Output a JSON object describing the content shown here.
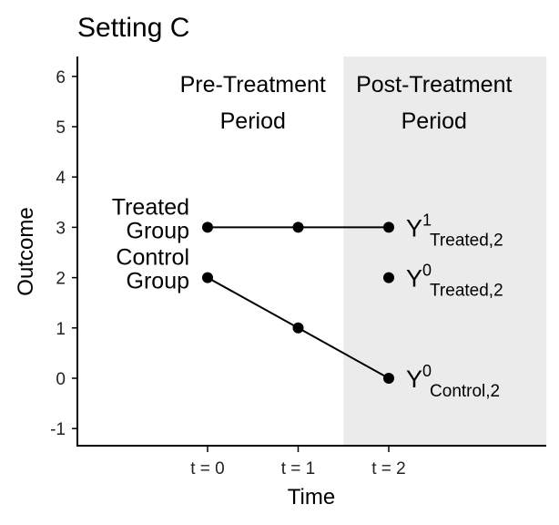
{
  "chart_data": {
    "type": "line",
    "title": "Setting C",
    "xlabel": "Time",
    "ylabel": "Outcome",
    "xlim": [
      -1.44,
      3.74
    ],
    "ylim": [
      -1.34,
      6.4
    ],
    "x_ticks": [
      0,
      1,
      2
    ],
    "x_tick_labels": [
      "t = 0",
      "t = 1",
      "t = 2"
    ],
    "y_ticks": [
      -1,
      0,
      1,
      2,
      3,
      4,
      5,
      6
    ],
    "y_tick_labels": [
      "-1",
      "0",
      "1",
      "2",
      "3",
      "4",
      "5",
      "6"
    ],
    "grid": false,
    "shaded_region": {
      "x_from": 1.5,
      "x_to": 3.74,
      "color": "#ebebeb"
    },
    "series": [
      {
        "name": "Treated Group",
        "x": [
          0,
          1,
          2
        ],
        "y": [
          3,
          3,
          3
        ]
      },
      {
        "name": "Control Group",
        "x": [
          0,
          1,
          2
        ],
        "y": [
          2,
          1,
          0
        ]
      }
    ],
    "extra_points": [
      {
        "x": 2,
        "y": 2
      }
    ],
    "period_labels": [
      {
        "x": 0.5,
        "lines": [
          "Pre-Treatment",
          "Period"
        ]
      },
      {
        "x": 2.5,
        "lines": [
          "Post-Treatment",
          "Period"
        ]
      }
    ],
    "group_labels": [
      {
        "y": 3,
        "lines": [
          "Treated",
          "Group"
        ]
      },
      {
        "y": 2,
        "lines": [
          "Control",
          "Group"
        ]
      }
    ],
    "point_annotations": [
      {
        "y": 3,
        "base": "Y",
        "sup": "1",
        "sub": "Treated,2"
      },
      {
        "y": 2,
        "base": "Y",
        "sup": "0",
        "sub": "Treated,2"
      },
      {
        "y": 0,
        "base": "Y",
        "sup": "0",
        "sub": "Control,2"
      }
    ]
  }
}
